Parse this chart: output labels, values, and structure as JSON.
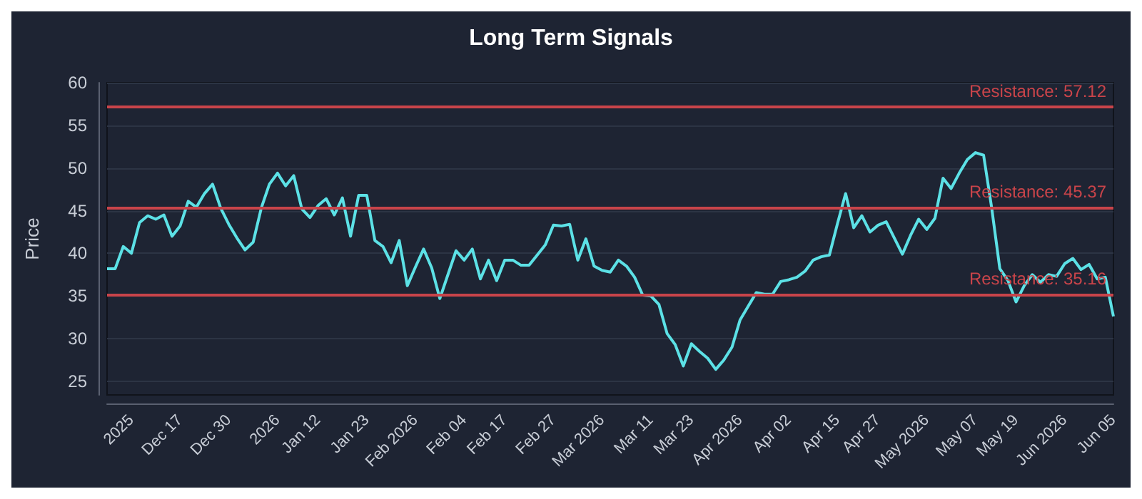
{
  "chart_data": {
    "type": "line",
    "title": "Long Term Signals",
    "ylabel": "Price",
    "categories": [
      null,
      null,
      null,
      "2025",
      null,
      null,
      null,
      null,
      null,
      "Dec 17",
      null,
      null,
      null,
      null,
      null,
      "Dec 30",
      null,
      null,
      null,
      null,
      null,
      "2026",
      null,
      null,
      null,
      null,
      "Jan 12",
      null,
      null,
      null,
      null,
      null,
      "Jan 23",
      null,
      null,
      null,
      null,
      null,
      "Feb 2026",
      null,
      null,
      null,
      null,
      null,
      "Feb 04",
      null,
      null,
      null,
      null,
      "Feb 17",
      null,
      null,
      null,
      null,
      null,
      "Feb 27",
      null,
      null,
      null,
      null,
      null,
      "Mar 2026",
      null,
      null,
      null,
      null,
      null,
      "Mar 11",
      null,
      null,
      null,
      null,
      "Mar 23",
      null,
      null,
      null,
      null,
      null,
      "Apr 2026",
      null,
      null,
      null,
      null,
      null,
      "Apr 02",
      null,
      null,
      null,
      null,
      null,
      "Apr 15",
      null,
      null,
      null,
      null,
      "Apr 27",
      null,
      null,
      null,
      null,
      null,
      "May 2026",
      null,
      null,
      null,
      null,
      null,
      "May 07",
      null,
      null,
      null,
      null,
      "May 19",
      null,
      null,
      null,
      null,
      null,
      "Jun 2026",
      null,
      null,
      null,
      null,
      null,
      "Jun 05"
    ],
    "series": [
      {
        "color": "#5ce1e6",
        "values": [
          38.2,
          38.2,
          40.8,
          40.0,
          43.6,
          44.4,
          44.0,
          44.5,
          42.0,
          43.2,
          46.1,
          45.4,
          47.0,
          48.1,
          45.3,
          43.4,
          41.8,
          40.4,
          41.3,
          45.3,
          48.1,
          49.4,
          47.9,
          49.1,
          45.2,
          44.2,
          45.6,
          46.4,
          44.5,
          46.5,
          42.0,
          46.8,
          46.8,
          41.5,
          40.8,
          38.9,
          41.5,
          36.2,
          38.4,
          40.5,
          38.3,
          34.7,
          37.5,
          40.3,
          39.2,
          40.5,
          37.0,
          39.2,
          36.8,
          39.2,
          39.2,
          38.6,
          38.6,
          39.8,
          41.0,
          43.3,
          43.2,
          43.4,
          39.2,
          41.7,
          38.5,
          38.0,
          37.8,
          39.2,
          38.5,
          37.2,
          35.1,
          35.0,
          34.0,
          30.6,
          29.3,
          26.8,
          29.4,
          28.5,
          27.7,
          26.4,
          27.5,
          29.0,
          32.2,
          33.8,
          35.4,
          35.2,
          35.2,
          36.7,
          36.9,
          37.2,
          37.9,
          39.2,
          39.6,
          39.8,
          43.5,
          47.0,
          43.0,
          44.4,
          42.5,
          43.3,
          43.7,
          41.8,
          39.9,
          42.1,
          44.0,
          42.8,
          44.1,
          48.8,
          47.6,
          49.4,
          51.0,
          51.8,
          51.5,
          45.3,
          38.2,
          36.8,
          34.3,
          36.2,
          37.5,
          36.6,
          37.5,
          37.3,
          38.8,
          39.4,
          38.1,
          38.7,
          37.0,
          37.2,
          32.6
        ]
      }
    ],
    "ylim": [
      23.4,
      60
    ],
    "yticks": [
      25,
      30,
      35,
      40,
      45,
      50,
      55,
      60
    ],
    "grid": "y",
    "marker": "none",
    "line_style": "solid",
    "ref_lines": [
      {
        "axis": "y",
        "value": 57.12,
        "label": "Resistance: 57.12",
        "color": "#c9444a"
      },
      {
        "axis": "y",
        "value": 45.37,
        "label": "Resistance: 45.37",
        "color": "#c9444a"
      },
      {
        "axis": "y",
        "value": 35.16,
        "label": "Resistance: 35.16",
        "color": "#c9444a"
      }
    ]
  }
}
